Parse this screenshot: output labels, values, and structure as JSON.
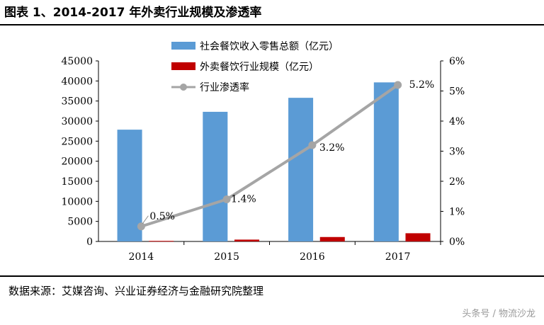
{
  "header": {
    "title": "图表 1、2014-2017 年外卖行业规模及渗透率"
  },
  "footer": {
    "source": "数据来源：艾媒咨询、兴业证券经济与金融研究院整理",
    "watermark": "头条号 / 物流沙龙"
  },
  "colors": {
    "retail": "#5b9bd5",
    "takeout": "#c00000",
    "rate": "#a5a5a5"
  },
  "chart_data": {
    "type": "bar",
    "title": "",
    "categories": [
      "2014",
      "2015",
      "2016",
      "2017"
    ],
    "series": [
      {
        "name": "社会餐饮收入零售总额（亿元）",
        "type": "bar",
        "axis": "left",
        "values": [
          27860,
          32310,
          35799,
          39644
        ]
      },
      {
        "name": "外卖餐饮行业规模（亿元）",
        "type": "bar",
        "axis": "left",
        "values": [
          139,
          458,
          1104,
          2046
        ]
      },
      {
        "name": "行业渗透率",
        "type": "line",
        "axis": "right",
        "values": [
          0.5,
          1.4,
          3.2,
          5.2
        ],
        "labels": [
          "0.5%",
          "1.4%",
          "3.2%",
          "5.2%"
        ]
      }
    ],
    "y_left": {
      "min": 0,
      "max": 45000,
      "ticks": [
        "0",
        "5000",
        "10000",
        "15000",
        "20000",
        "25000",
        "30000",
        "35000",
        "40000",
        "45000"
      ]
    },
    "y_right": {
      "min": 0,
      "max": 6,
      "ticks": [
        "0%",
        "1%",
        "2%",
        "3%",
        "4%",
        "5%",
        "6%"
      ]
    },
    "grid": false,
    "legend_position": "top-center"
  }
}
